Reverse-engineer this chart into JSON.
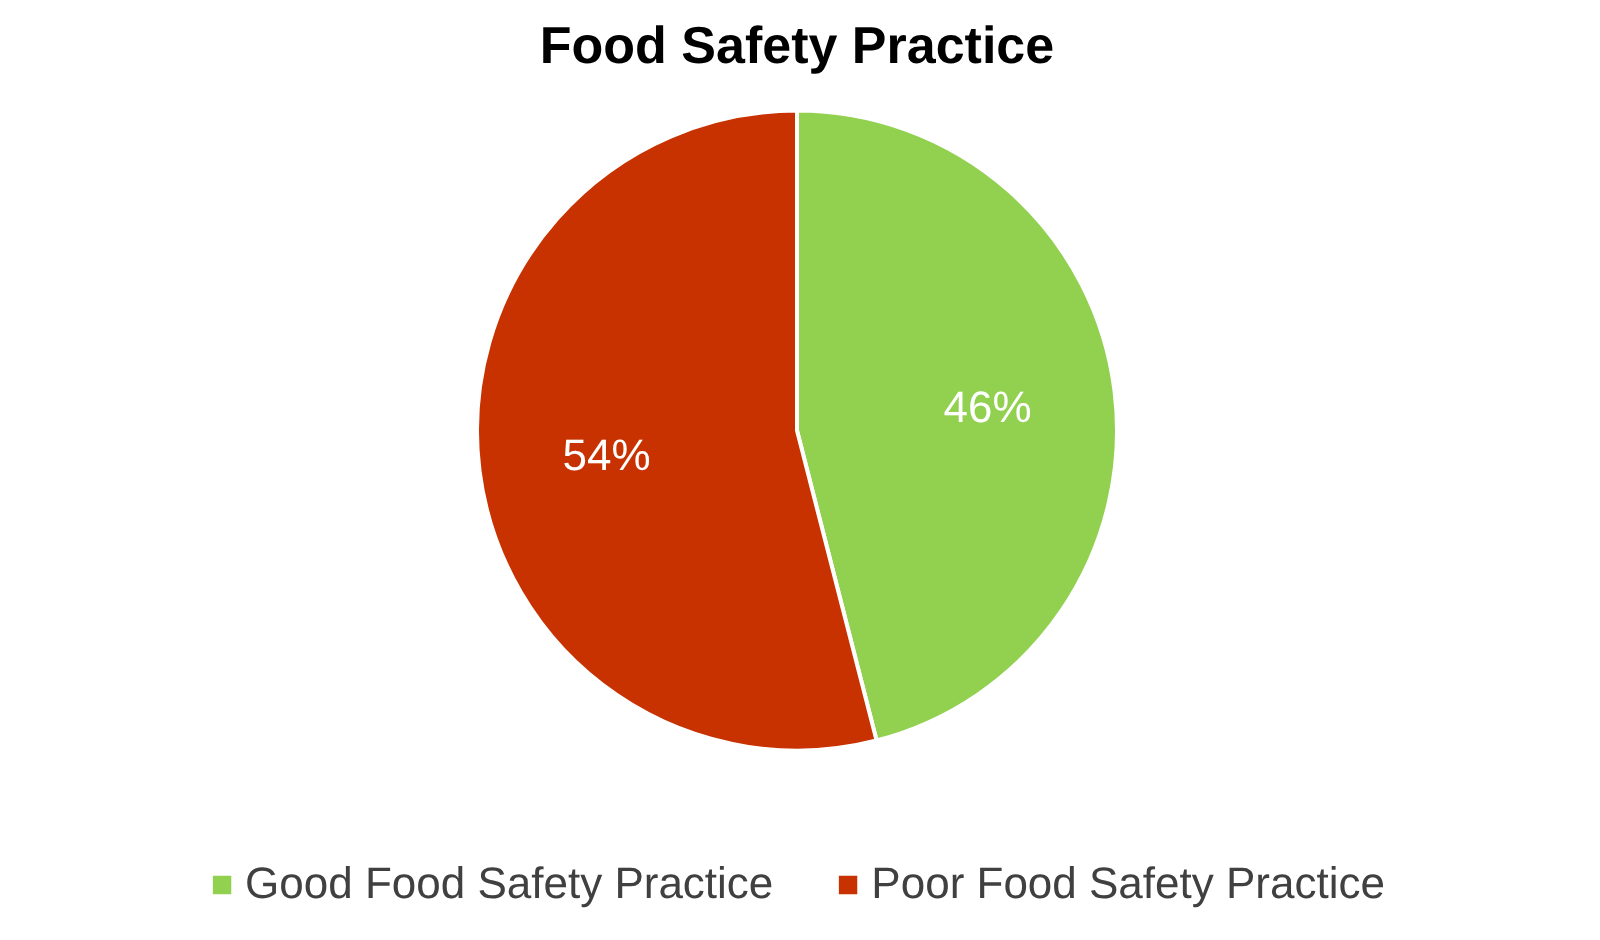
{
  "chart_data": {
    "type": "pie",
    "title": "Food Safety Practice",
    "categories": [
      "Good Food Safety Practice",
      "Poor Food Safety Practice"
    ],
    "values": [
      46,
      54
    ],
    "colors": [
      "#92d050",
      "#c83200"
    ],
    "value_labels": [
      "46%",
      "54%"
    ],
    "legend": "bottom"
  }
}
